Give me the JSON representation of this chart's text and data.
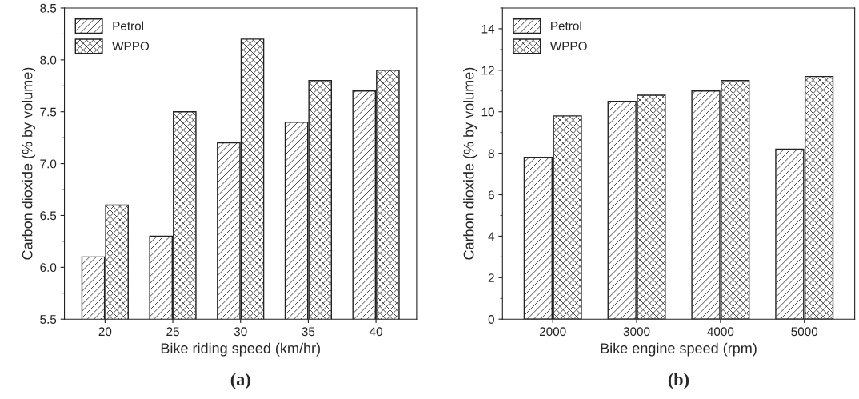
{
  "chart_data": [
    {
      "type": "bar",
      "categories": [
        "20",
        "25",
        "30",
        "35",
        "40"
      ],
      "xlabel": "Bike riding speed (km/hr)",
      "ylabel": "Carbon dioxide (% by volume)",
      "ylim": [
        5.5,
        8.5
      ],
      "yticks": [
        5.5,
        {
          "value": 6,
          "label": "6.0"
        },
        6.5,
        {
          "value": 7,
          "label": "7.0"
        },
        7.5,
        {
          "value": 8,
          "label": "8.0"
        },
        8.5
      ],
      "legend": "top left",
      "grid": false,
      "annotations": [
        "(a)"
      ],
      "series": [
        {
          "name": "Petrol",
          "color": "#222222",
          "values": [
            6.1,
            6.3,
            7.2,
            7.4,
            7.7
          ]
        },
        {
          "name": "WPPO",
          "color": "#222222",
          "values": [
            6.6,
            7.5,
            8.2,
            7.8,
            7.9
          ]
        }
      ]
    },
    {
      "type": "bar",
      "categories": [
        "2000",
        "3000",
        "4000",
        "5000"
      ],
      "xlabel": "Bike engine speed (rpm)",
      "ylabel": "Carbon dioxide (% by volume)",
      "ylim": [
        0,
        15
      ],
      "yticks": [
        0,
        2,
        4,
        6,
        8,
        10,
        12,
        14
      ],
      "legend": "top left",
      "grid": false,
      "annotations": [
        "(b)"
      ],
      "series": [
        {
          "name": "Petrol",
          "color": "#222222",
          "values": [
            7.8,
            10.5,
            11.0,
            8.2
          ]
        },
        {
          "name": "WPPO",
          "color": "#222222",
          "values": [
            9.8,
            10.8,
            11.5,
            11.7
          ]
        }
      ]
    }
  ]
}
